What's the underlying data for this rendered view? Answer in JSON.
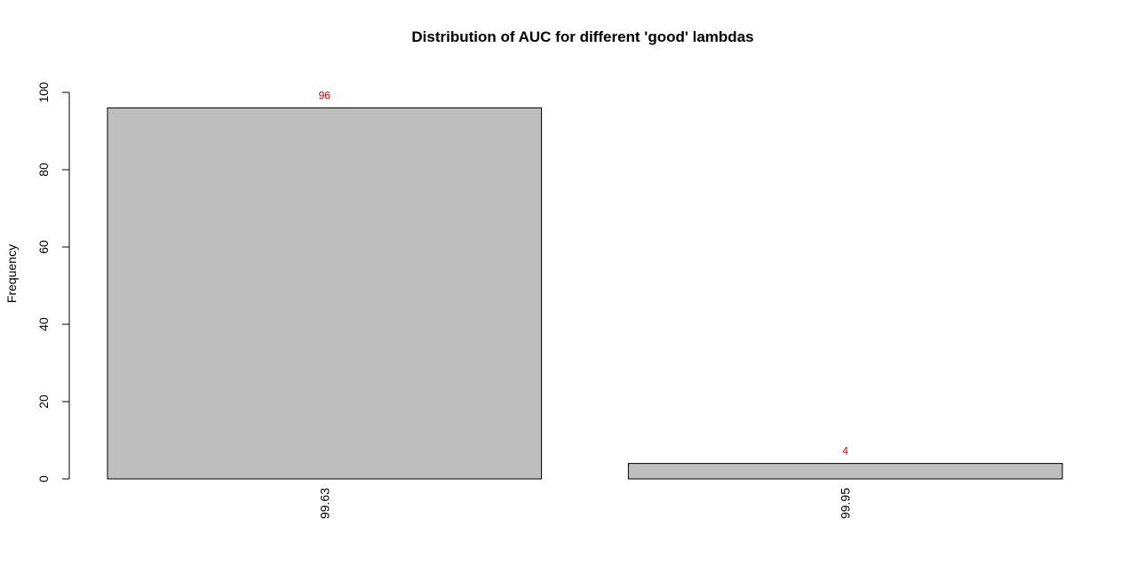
{
  "chart_data": {
    "type": "bar",
    "title": "Distribution of AUC for different 'good' lambdas",
    "xlabel": "",
    "ylabel": "Frequency",
    "categories": [
      "99.63",
      "99.95"
    ],
    "values": [
      96,
      4
    ],
    "data_labels": [
      "96",
      "4"
    ],
    "ylim": [
      0,
      100
    ],
    "yticks": [
      0,
      20,
      40,
      60,
      80,
      100
    ],
    "ytick_labels": [
      "0",
      "20",
      "40",
      "60",
      "80",
      "100"
    ],
    "grid": false,
    "legend": "none",
    "bar_color": "#bebebe",
    "label_color": "#cc0000",
    "category_label_orientation": "vertical"
  }
}
